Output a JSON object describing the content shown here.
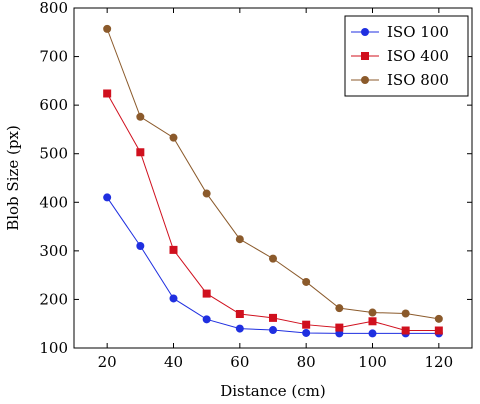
{
  "chart_data": {
    "type": "line",
    "title": "",
    "xlabel": "Distance (cm)",
    "ylabel": "Blob Size (px)",
    "xlim": [
      10,
      130
    ],
    "ylim": [
      100,
      800
    ],
    "x": [
      20,
      30,
      40,
      50,
      60,
      70,
      80,
      90,
      100,
      110,
      120
    ],
    "xticks": [
      20,
      40,
      60,
      80,
      100,
      120
    ],
    "yticks": [
      100,
      200,
      300,
      400,
      500,
      600,
      700,
      800
    ],
    "grid": false,
    "legend_position": "top-right",
    "series": [
      {
        "name": "ISO 100",
        "color": "#1f2fe0",
        "marker": "circle",
        "values": [
          410,
          310,
          202,
          159,
          140,
          137,
          131,
          130,
          130,
          130,
          130
        ]
      },
      {
        "name": "ISO 400",
        "color": "#d0101e",
        "marker": "square",
        "values": [
          624,
          503,
          302,
          212,
          170,
          162,
          148,
          142,
          155,
          136,
          136
        ]
      },
      {
        "name": "ISO 800",
        "color": "#8b5a2b",
        "marker": "circle",
        "values": [
          757,
          576,
          533,
          418,
          324,
          284,
          236,
          182,
          173,
          171,
          160
        ]
      }
    ]
  }
}
